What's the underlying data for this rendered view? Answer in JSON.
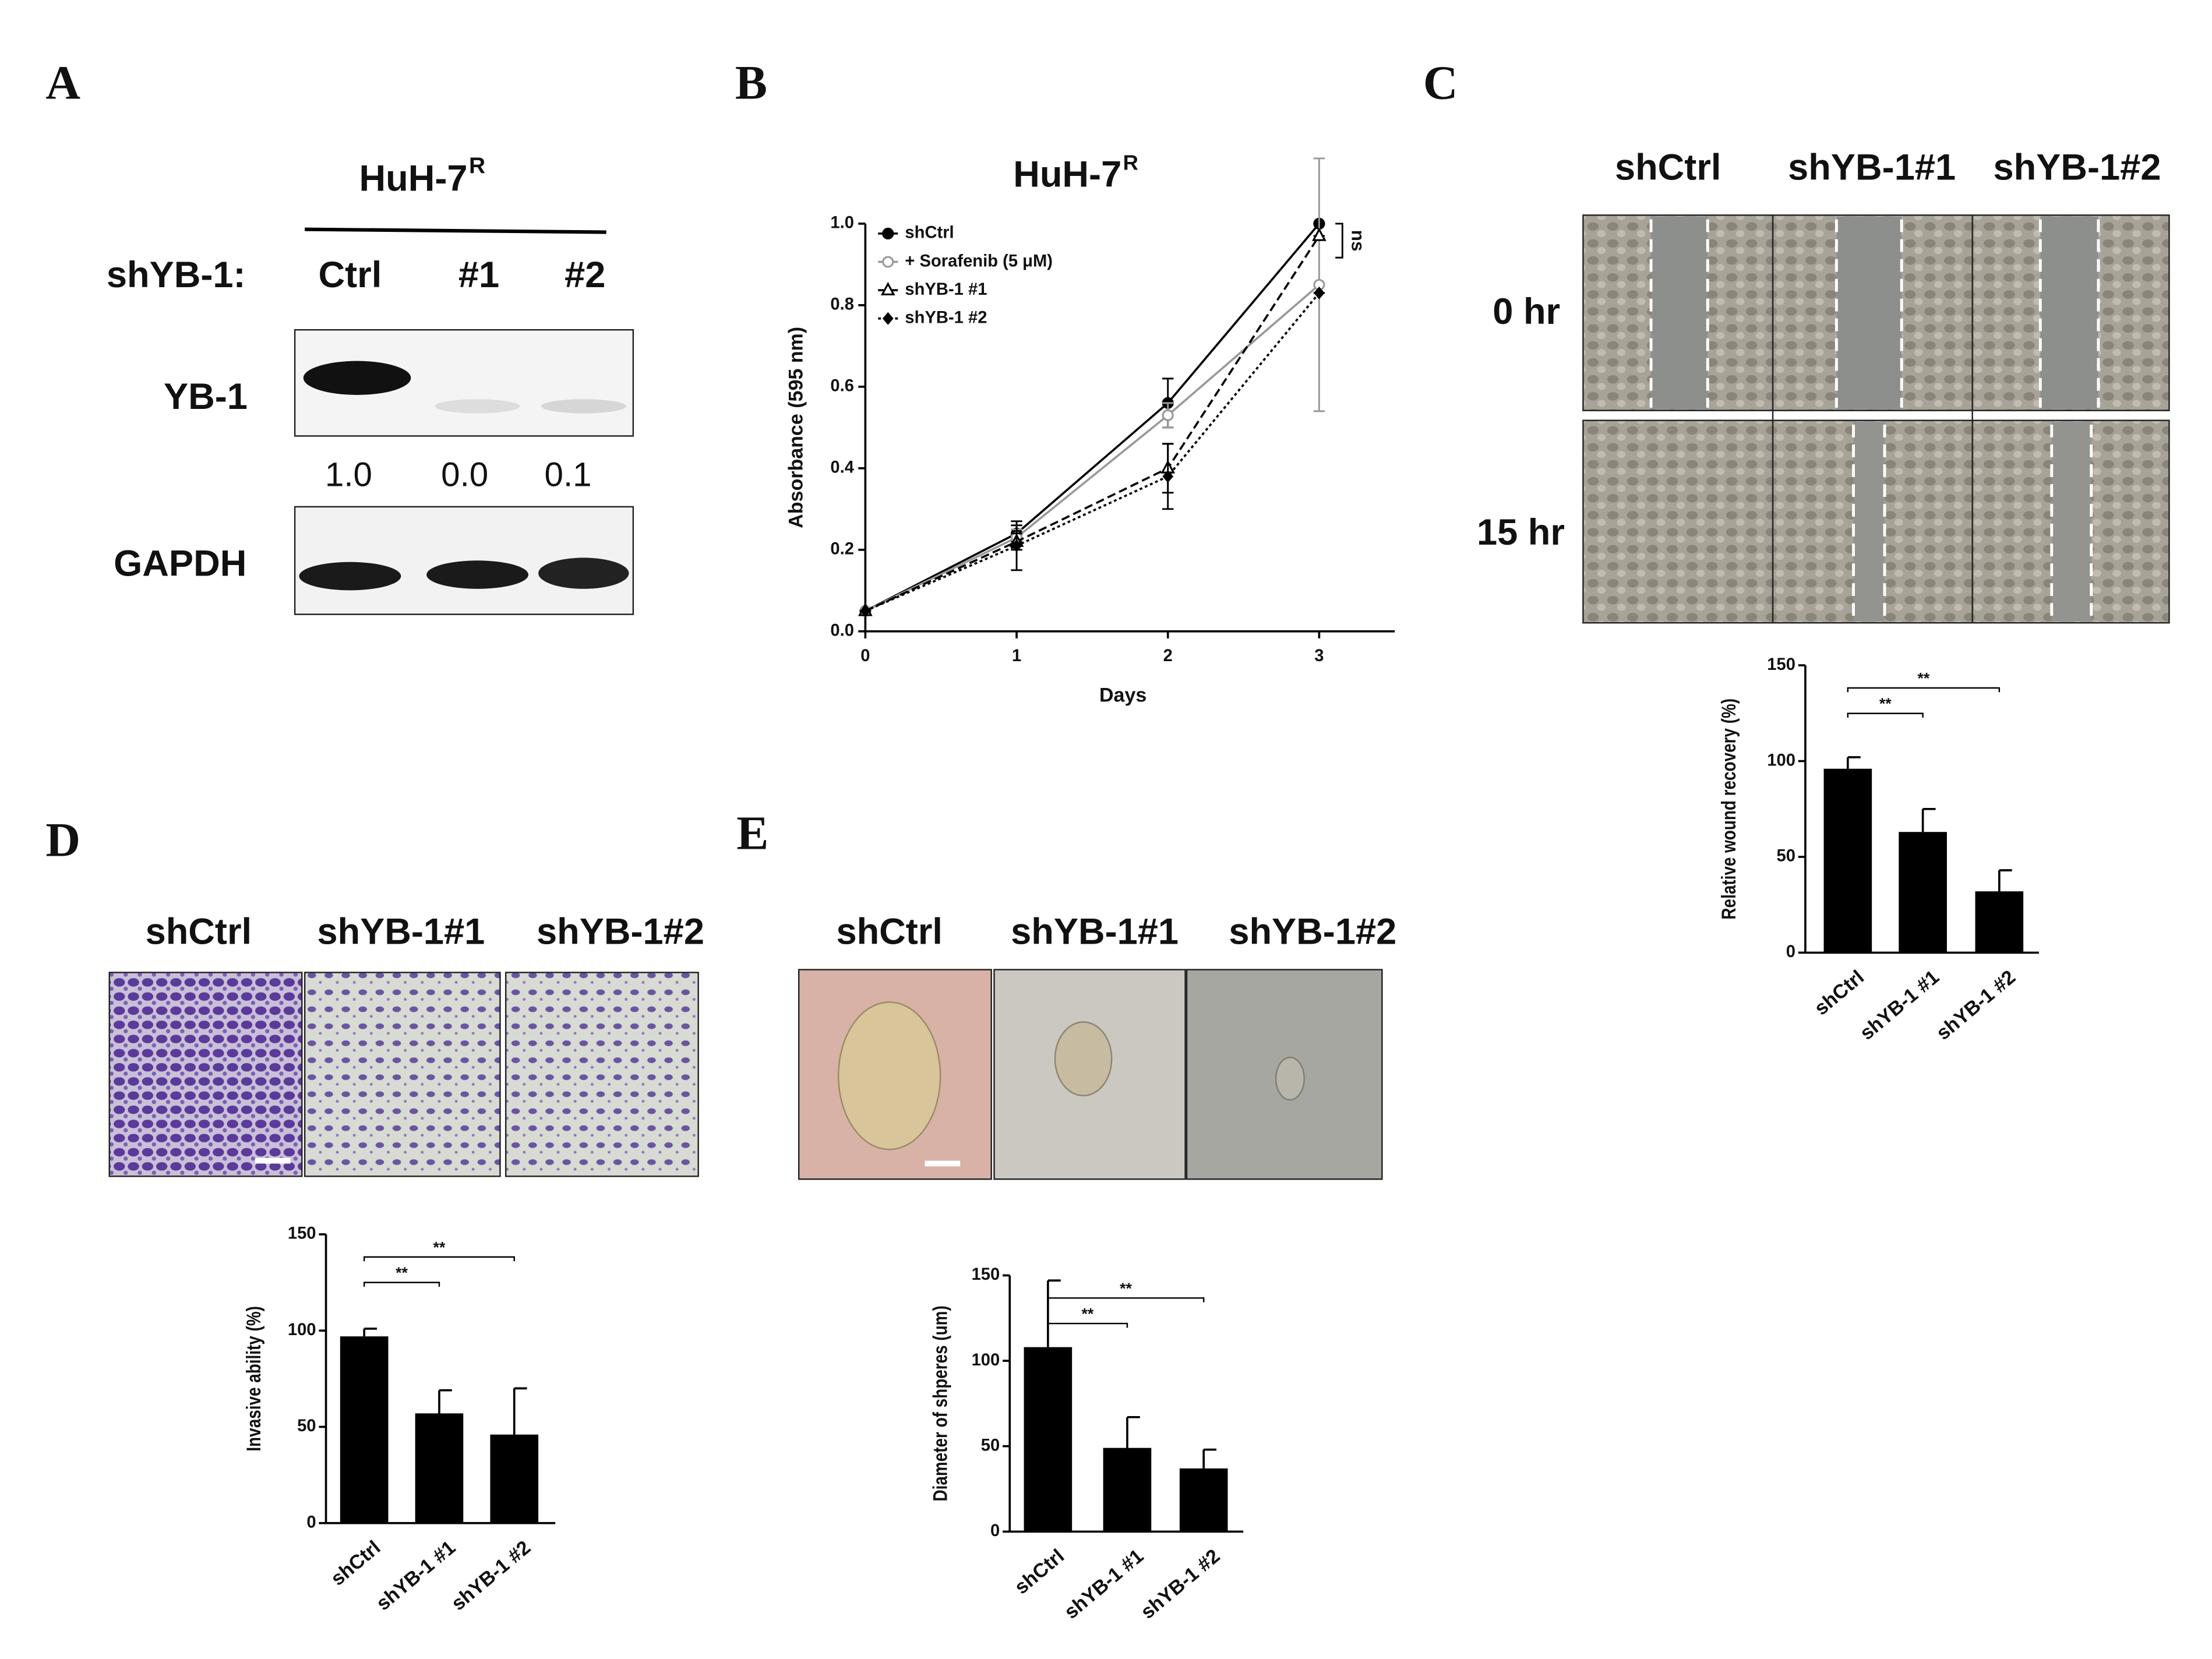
{
  "panels": [
    "A",
    "B",
    "C",
    "D",
    "E"
  ],
  "blot": {
    "title": "HuH-7",
    "title_superscript": "R",
    "row_label": "shYB-1:",
    "lanes": [
      "Ctrl",
      "#1",
      "#2"
    ],
    "bands": [
      "YB-1",
      "GAPDH"
    ],
    "quantification": [
      "1.0",
      "0.0",
      "0.1"
    ]
  },
  "wound": {
    "columns": [
      "shCtrl",
      "shYB-1#1",
      "shYB-1#2"
    ],
    "rows": [
      "0 hr",
      "15 hr"
    ]
  },
  "invasion": {
    "columns": [
      "shCtrl",
      "shYB-1#1",
      "shYB-1#2"
    ]
  },
  "spheres": {
    "columns": [
      "shCtrl",
      "shYB-1#1",
      "shYB-1#2"
    ]
  },
  "chart_data": [
    {
      "type": "line",
      "title": "HuH-7",
      "title_superscript": "R",
      "xlabel": "Days",
      "ylabel": "Absorbance (595 nm)",
      "x": [
        0,
        1,
        2,
        3
      ],
      "xlim": [
        0,
        3.5
      ],
      "xticks": [
        0,
        1,
        2,
        3
      ],
      "ylim": [
        0,
        1
      ],
      "yticks": [
        {
          "value": 0,
          "label": "0.0"
        },
        0.2,
        0.4,
        0.6,
        0.8,
        {
          "value": 1,
          "label": "1.0"
        }
      ],
      "series": [
        {
          "name": "shCtrl",
          "color": "#000000",
          "dash": "",
          "marker": "circle-filled",
          "values": [
            0.05,
            0.24,
            0.56,
            1.0
          ],
          "errors": [
            0,
            0.02,
            0.06,
            0
          ]
        },
        {
          "name": "+ Sorafenib (5 μM)",
          "color": "#999999",
          "dash": "",
          "marker": "circle-open",
          "values": [
            0.05,
            0.23,
            0.53,
            0.85
          ],
          "errors": [
            0,
            0.02,
            0.03,
            0.31
          ]
        },
        {
          "name": "shYB-1 #1",
          "color": "#000000",
          "dash": "6 3",
          "marker": "triangle-open",
          "values": [
            0.05,
            0.22,
            0.4,
            0.97
          ],
          "errors": [
            0,
            0.02,
            0.06,
            0
          ]
        },
        {
          "name": "shYB-1 #2",
          "color": "#000000",
          "dash": "2 2",
          "marker": "diamond",
          "values": [
            0.05,
            0.21,
            0.38,
            0.83
          ],
          "errors": [
            0,
            0.06,
            0.08,
            0
          ]
        }
      ],
      "annotations": [
        "ns"
      ]
    },
    {
      "type": "bar",
      "categories": [
        "shCtrl",
        "shYB-1 #1",
        "shYB-1 #2"
      ],
      "values": [
        96,
        63,
        32
      ],
      "errors": [
        6,
        12,
        11
      ],
      "color": "#000000",
      "ylabel": "Relative wound recovery (%)",
      "ylim": [
        0,
        150
      ],
      "yticks": [
        0,
        50,
        100,
        150
      ],
      "annotations": [
        "**",
        "**"
      ]
    },
    {
      "type": "bar",
      "categories": [
        "shCtrl",
        "shYB-1 #1",
        "shYB-1 #2"
      ],
      "values": [
        97,
        57,
        46
      ],
      "errors": [
        4,
        12,
        24
      ],
      "color": "#000000",
      "ylabel": "Invasive ability (%)",
      "ylim": [
        0,
        150
      ],
      "yticks": [
        0,
        50,
        100,
        150
      ],
      "annotations": [
        "**",
        "**"
      ]
    },
    {
      "type": "bar",
      "categories": [
        "shCtrl",
        "shYB-1 #1",
        "shYB-1 #2"
      ],
      "values": [
        108,
        49,
        37
      ],
      "errors": [
        39,
        18,
        11
      ],
      "color": "#000000",
      "ylabel": "Diameter of shperes (um)",
      "ylim": [
        0,
        150
      ],
      "yticks": [
        0,
        50,
        100,
        150
      ],
      "annotations": [
        "**",
        "**"
      ]
    }
  ]
}
